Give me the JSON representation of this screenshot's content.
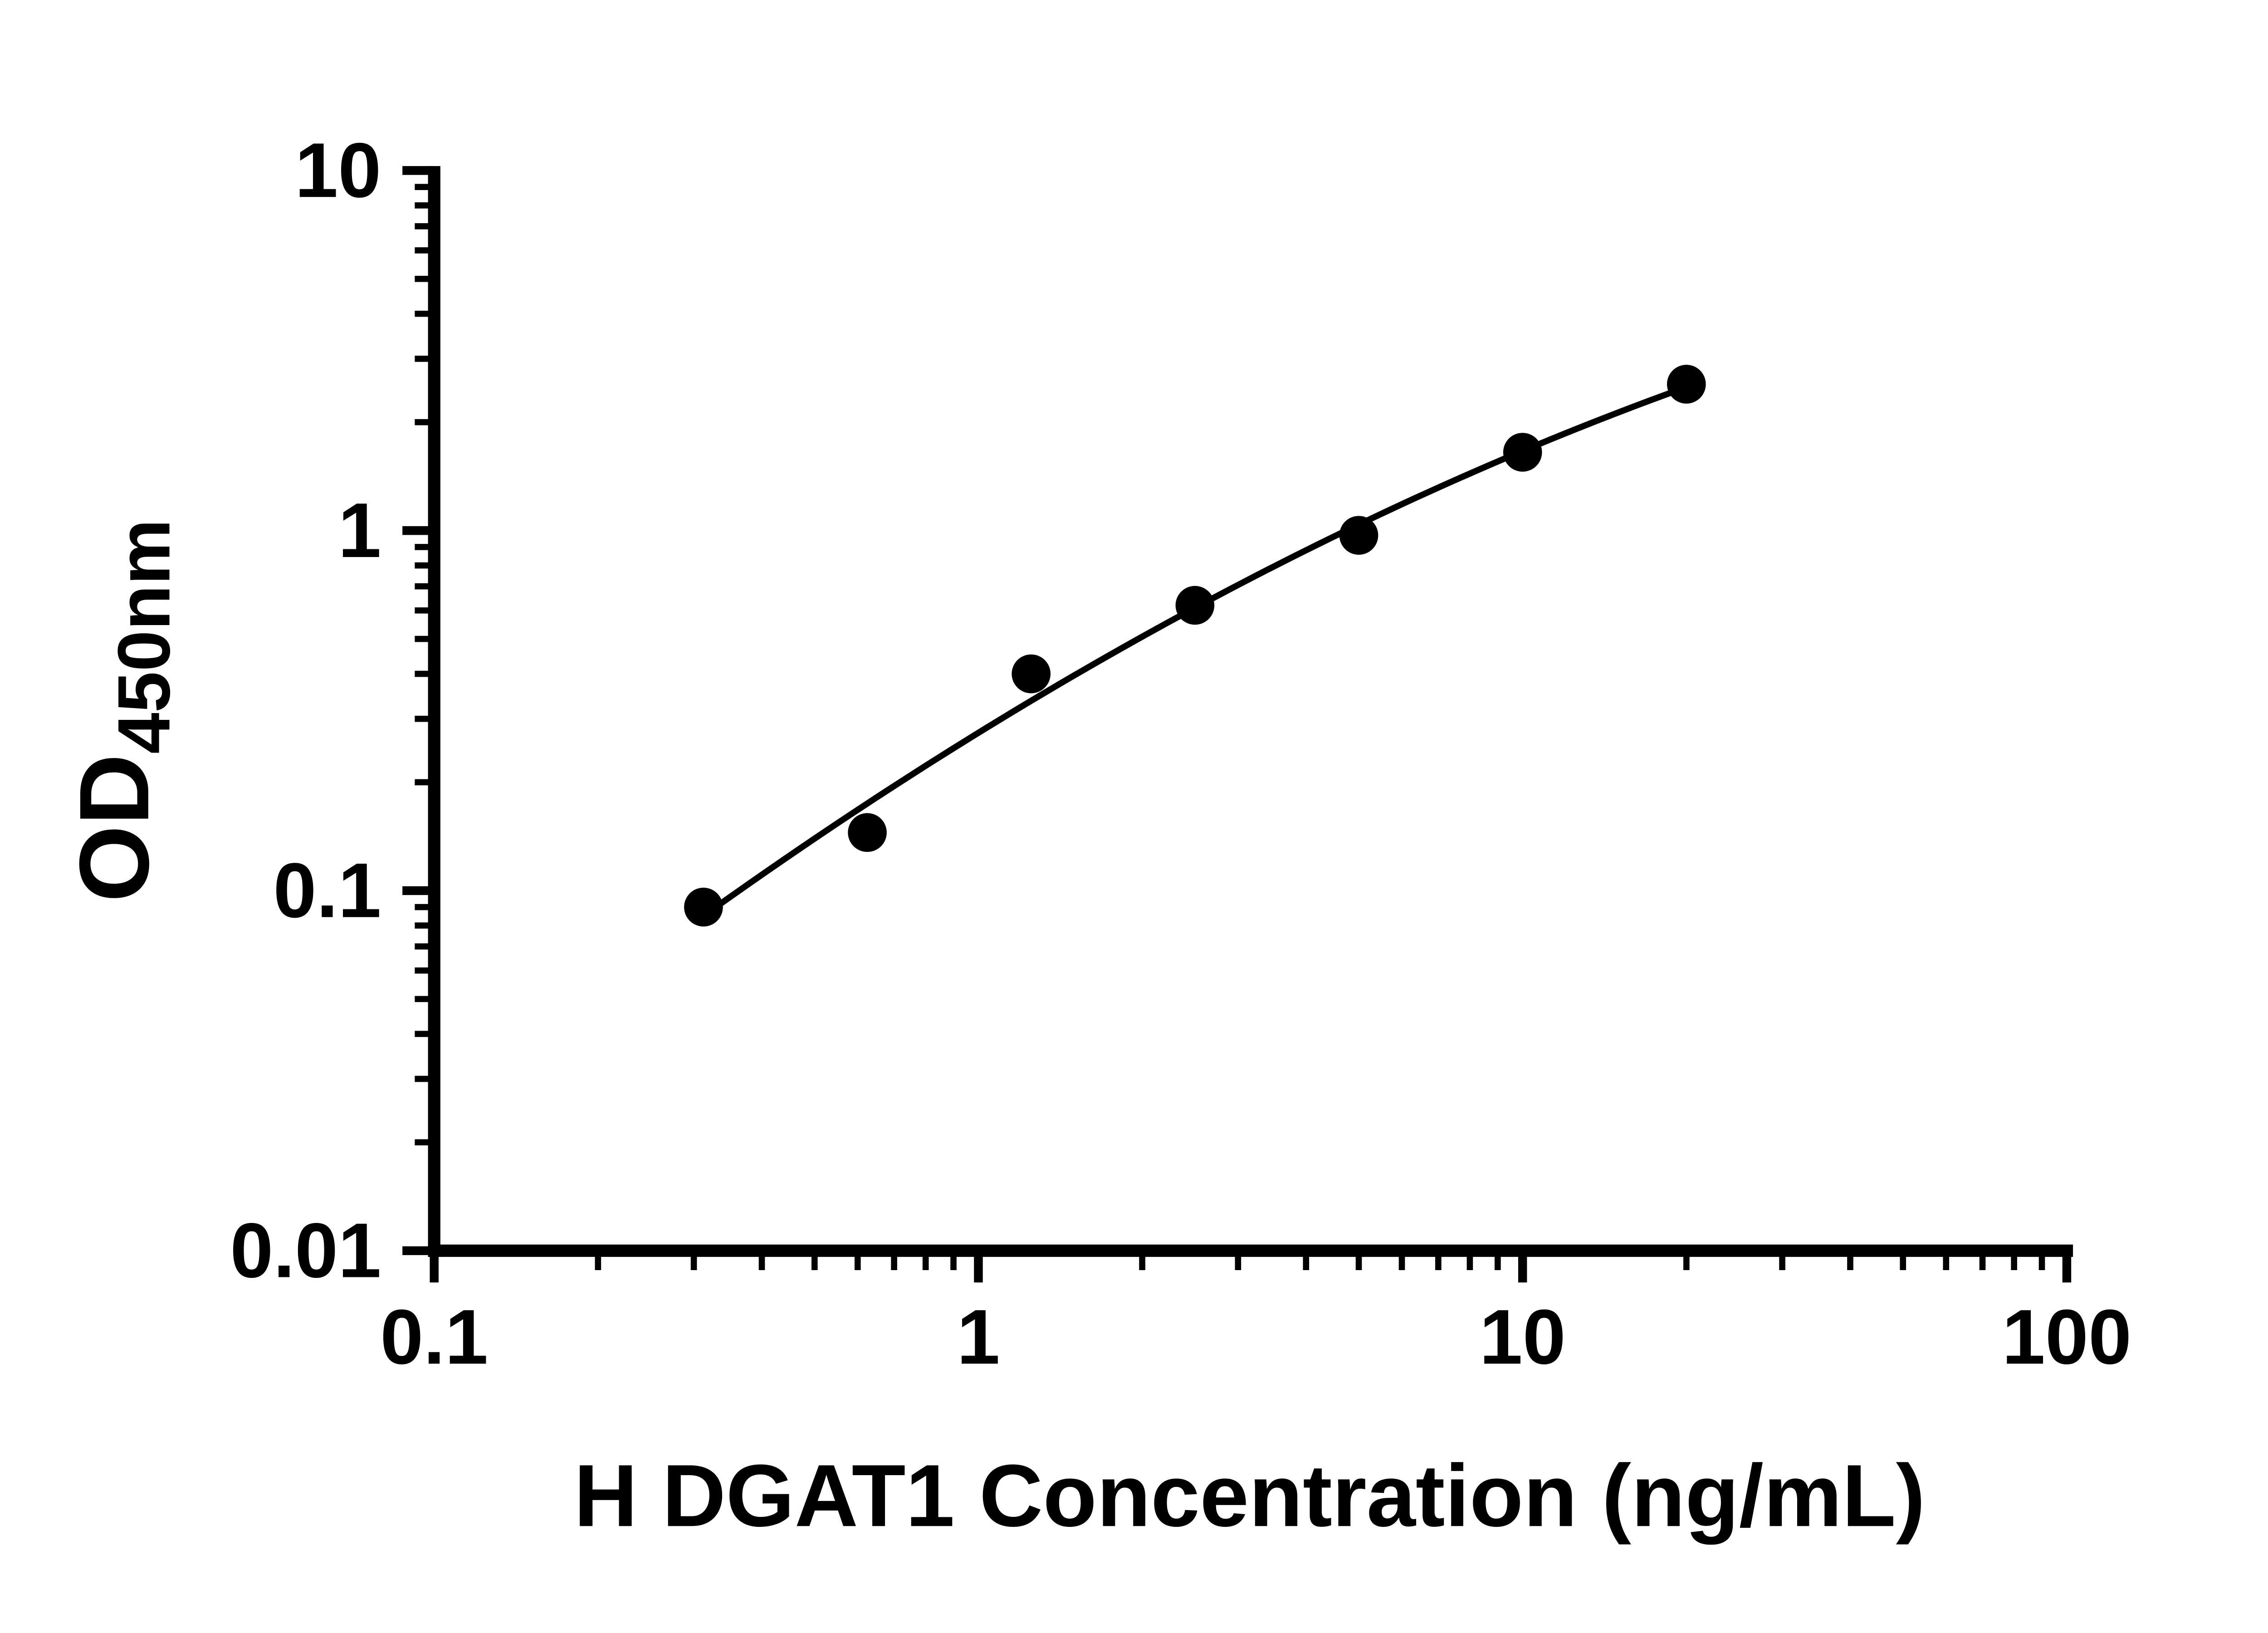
{
  "chart_data": {
    "type": "scatter",
    "title": "",
    "xlabel": "H DGAT1 Concentration (ng/mL)",
    "ylabel": "OD450nm",
    "ylabel_main": "OD",
    "ylabel_sub": "450nm",
    "xscale": "log",
    "yscale": "log",
    "xlim": [
      0.1,
      100
    ],
    "ylim": [
      0.01,
      10
    ],
    "x_ticks": {
      "values": [
        0.1,
        1,
        10,
        100
      ],
      "labels": [
        "0.1",
        "1",
        "10",
        "100"
      ]
    },
    "y_ticks": {
      "values": [
        0.01,
        0.1,
        1,
        10
      ],
      "labels": [
        "0.01",
        "0.1",
        "1",
        "10"
      ]
    },
    "minor_ticks": true,
    "grid": false,
    "legend": null,
    "fit": "log-quadratic smooth curve through standards",
    "points": [
      {
        "x": 0.3125,
        "y": 0.09
      },
      {
        "x": 0.625,
        "y": 0.145
      },
      {
        "x": 1.25,
        "y": 0.4
      },
      {
        "x": 2.5,
        "y": 0.62
      },
      {
        "x": 5.0,
        "y": 0.97
      },
      {
        "x": 10.0,
        "y": 1.65
      },
      {
        "x": 20.0,
        "y": 2.55
      }
    ],
    "colors": {
      "marker": "#000000",
      "curve": "#000000",
      "axis": "#000000",
      "text": "#000000",
      "background": "#ffffff"
    }
  }
}
